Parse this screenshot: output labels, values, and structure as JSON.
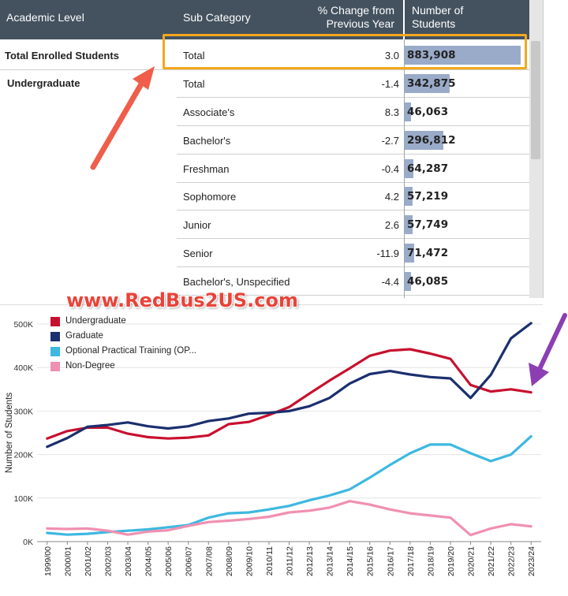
{
  "table": {
    "headers": {
      "academic_level": "Academic Level",
      "sub_category": "Sub Category",
      "pct_change_line1": "% Change from",
      "pct_change_line2": "Previous Year",
      "students_line1": "Number of",
      "students_line2": "Students"
    },
    "level_total": "Total Enrolled Students",
    "level_undergrad": "Undergraduate",
    "rows": [
      {
        "sub": "Total",
        "pct": "3.0",
        "students": "883,908",
        "value": 883908
      },
      {
        "sub": "Total",
        "pct": "-1.4",
        "students": "342,875",
        "value": 342875
      },
      {
        "sub": "Associate's",
        "pct": "8.3",
        "students": "46,063",
        "value": 46063
      },
      {
        "sub": "Bachelor's",
        "pct": "-2.7",
        "students": "296,812",
        "value": 296812
      },
      {
        "sub": "Freshman",
        "pct": "-0.4",
        "students": "64,287",
        "value": 64287
      },
      {
        "sub": "Sophomore",
        "pct": "4.2",
        "students": "57,219",
        "value": 57219
      },
      {
        "sub": "Junior",
        "pct": "2.6",
        "students": "57,749",
        "value": 57749
      },
      {
        "sub": "Senior",
        "pct": "-11.9",
        "students": "71,472",
        "value": 71472
      },
      {
        "sub": "Bachelor's, Unspecified",
        "pct": "-4.4",
        "students": "46,085",
        "value": 46085
      }
    ],
    "colors": {
      "header_bg": "#44525f",
      "bar": "#9aabc9",
      "highlight": "#f4a81e"
    }
  },
  "watermark": "www.RedBus2US.com",
  "chart_data": {
    "type": "line",
    "ylabel": "Number of Students",
    "ylim": [
      0,
      500000
    ],
    "yticks": [
      {
        "v": 0,
        "label": "0K"
      },
      {
        "v": 100000,
        "label": "100K"
      },
      {
        "v": 200000,
        "label": "200K"
      },
      {
        "v": 300000,
        "label": "300K"
      },
      {
        "v": 400000,
        "label": "400K"
      },
      {
        "v": 500000,
        "label": "500K"
      }
    ],
    "categories": [
      "1999/00",
      "2000/01",
      "2001/02",
      "2002/03",
      "2003/04",
      "2004/05",
      "2005/06",
      "2006/07",
      "2007/08",
      "2008/09",
      "2009/10",
      "2010/11",
      "2011/12",
      "2012/13",
      "2013/14",
      "2014/15",
      "2015/16",
      "2016/17",
      "2017/18",
      "2018/19",
      "2019/20",
      "2020/21",
      "2021/22",
      "2022/23",
      "2023/24"
    ],
    "legend_position": "top-left",
    "series": [
      {
        "name": "Undergraduate",
        "color": "#c8102e",
        "values": [
          237000,
          254000,
          262000,
          262000,
          248000,
          240000,
          237000,
          239000,
          244000,
          270000,
          275000,
          291000,
          309000,
          340000,
          370000,
          398000,
          427000,
          439000,
          442000,
          432000,
          420000,
          360000,
          345000,
          350000,
          343000
        ]
      },
      {
        "name": "Graduate",
        "color": "#1b2f6e",
        "values": [
          218000,
          238000,
          264000,
          268000,
          274000,
          265000,
          260000,
          265000,
          277000,
          283000,
          294000,
          296000,
          300000,
          311000,
          330000,
          363000,
          385000,
          392000,
          384000,
          378000,
          375000,
          330000,
          383000,
          467000,
          502000
        ]
      },
      {
        "name": "Optional Practical Training (OP...",
        "color": "#3db8e0",
        "values": [
          20000,
          16000,
          18000,
          22000,
          25000,
          28000,
          33000,
          38000,
          55000,
          65000,
          67000,
          74000,
          82000,
          95000,
          106000,
          120000,
          147000,
          176000,
          203000,
          223000,
          223000,
          203000,
          185000,
          200000,
          242000
        ]
      },
      {
        "name": "Non-Degree",
        "color": "#f090b0",
        "values": [
          30000,
          29000,
          30000,
          25000,
          16000,
          23000,
          26000,
          36000,
          45000,
          48000,
          52000,
          57000,
          67000,
          71000,
          78000,
          93000,
          85000,
          74000,
          65000,
          60000,
          55000,
          15000,
          30000,
          40000,
          35000
        ]
      }
    ]
  }
}
